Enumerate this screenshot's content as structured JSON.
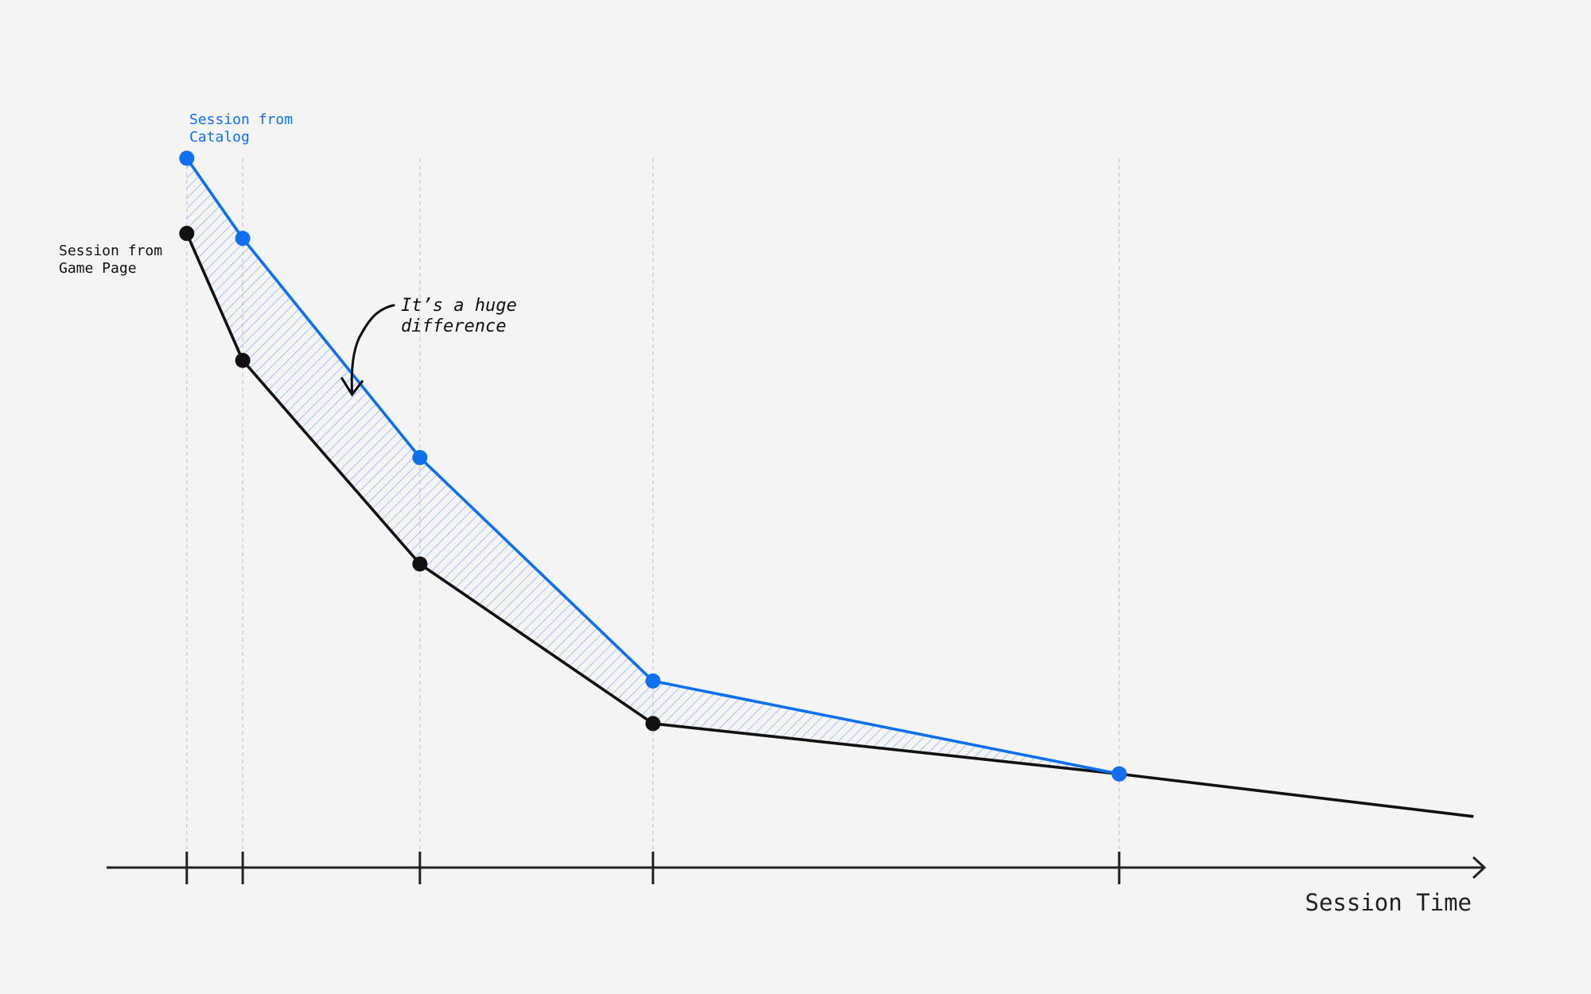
{
  "chart_data": {
    "type": "line",
    "x": [
      0,
      6,
      25,
      50,
      100,
      138
    ],
    "series": [
      {
        "name": "Session from Catalog",
        "color": "#0f6fec",
        "values": [
          100,
          88.7,
          57.8,
          26.3,
          13.2,
          null
        ]
      },
      {
        "name": "Session from Game Page",
        "color": "#111111",
        "values": [
          89.4,
          71.5,
          42.8,
          20.3,
          13.2,
          7.2
        ]
      }
    ],
    "xlim": [
      -8.6,
      139
    ],
    "ylim": [
      0,
      100
    ],
    "xticks": [
      0,
      6,
      25,
      50,
      100
    ],
    "xlabel": "Session Time",
    "annotation": "It’s a huge difference",
    "fill_between": true,
    "grid": true
  }
}
